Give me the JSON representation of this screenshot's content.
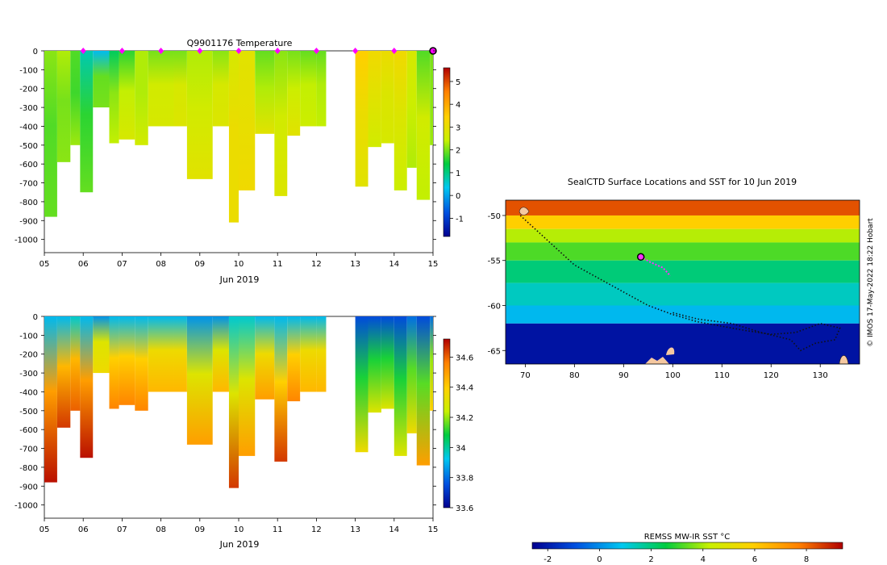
{
  "chart_data": [
    {
      "type": "heatmap",
      "title": "Q9901176  Temperature",
      "xlabel": "Jun 2019",
      "xticks": [
        "05",
        "06",
        "07",
        "08",
        "09",
        "10",
        "11",
        "12",
        "13",
        "14",
        "15"
      ],
      "xlim": [
        5,
        15
      ],
      "yticks": [
        0,
        -100,
        -200,
        -300,
        -400,
        -500,
        -600,
        -700,
        -800,
        -900,
        -1000
      ],
      "ylim": [
        -1070,
        0
      ],
      "colorbar": {
        "range": [
          -1.8,
          5.6
        ],
        "ticks": [
          5,
          4,
          3,
          2,
          1,
          0,
          -1
        ]
      },
      "colormap": [
        "#00008f",
        "#0050e0",
        "#00c8f0",
        "#00cc40",
        "#c8f000",
        "#ffd000",
        "#ff8000",
        "#b00000"
      ],
      "profile_markers": [
        6,
        7,
        8,
        9,
        10,
        11,
        12,
        13,
        14
      ],
      "profile_marker_color": "#ff00ff",
      "current_profile": 15,
      "profiles": [
        [
          5.0,
          5.33,
          -880,
          2.1,
          1.8,
          1.9
        ],
        [
          5.33,
          5.67,
          -590,
          2.3,
          2.0,
          2.1
        ],
        [
          5.67,
          5.92,
          -500,
          1.8,
          1.7,
          2.2
        ],
        [
          5.92,
          6.25,
          -750,
          0.7,
          1.6,
          1.9
        ],
        [
          6.25,
          6.67,
          -300,
          0.2,
          1.9,
          2.0
        ],
        [
          6.67,
          6.92,
          -490,
          1.2,
          2.1,
          2.4
        ],
        [
          6.92,
          7.33,
          -470,
          1.6,
          2.4,
          2.7
        ],
        [
          7.33,
          7.67,
          -500,
          2.3,
          2.3,
          2.6
        ],
        [
          7.67,
          8.33,
          -400,
          2.0,
          2.6,
          2.7
        ],
        [
          8.33,
          8.67,
          -400,
          2.0,
          2.7,
          2.8
        ],
        [
          8.67,
          9.33,
          -680,
          2.3,
          2.6,
          2.9
        ],
        [
          9.33,
          9.75,
          -400,
          2.1,
          2.7,
          2.8
        ],
        [
          9.75,
          10.0,
          -910,
          2.7,
          3.1,
          3.1
        ],
        [
          10.0,
          10.42,
          -740,
          2.9,
          3.0,
          3.2
        ],
        [
          10.42,
          10.92,
          -440,
          1.9,
          2.3,
          2.9
        ],
        [
          10.92,
          11.25,
          -770,
          2.1,
          2.6,
          2.8
        ],
        [
          11.25,
          11.58,
          -450,
          2.0,
          2.5,
          2.9
        ],
        [
          11.58,
          12.0,
          -400,
          1.9,
          2.4,
          2.5
        ],
        [
          12.0,
          12.25,
          -400,
          1.9,
          2.3,
          2.4
        ],
        [
          13.0,
          13.33,
          -720,
          3.5,
          3.1,
          2.9
        ],
        [
          13.33,
          13.67,
          -510,
          3.2,
          2.9,
          2.6
        ],
        [
          13.67,
          14.0,
          -490,
          3.1,
          2.8,
          2.7
        ],
        [
          14.0,
          14.33,
          -740,
          3.2,
          2.8,
          2.5
        ],
        [
          14.33,
          14.58,
          -620,
          2.7,
          2.5,
          2.3
        ],
        [
          14.58,
          14.92,
          -790,
          1.8,
          2.6,
          2.4
        ],
        [
          14.92,
          15.0,
          -500,
          2.0,
          2.1,
          2.2
        ]
      ]
    },
    {
      "type": "heatmap",
      "xlabel": "Jun 2019",
      "xticks": [
        "05",
        "06",
        "07",
        "08",
        "09",
        "10",
        "11",
        "12",
        "13",
        "14",
        "15"
      ],
      "xlim": [
        5,
        15
      ],
      "yticks": [
        0,
        -100,
        -200,
        -300,
        -400,
        -500,
        -600,
        -700,
        -800,
        -900,
        -1000
      ],
      "ylim": [
        -1070,
        0
      ],
      "colorbar": {
        "range": [
          33.6,
          34.72
        ],
        "ticks": [
          "34.6",
          "34.4",
          "34.2",
          "34",
          "33.8",
          "33.6"
        ]
      },
      "colormap": [
        "#00008f",
        "#0050e0",
        "#00c8f0",
        "#00cc40",
        "#c8f000",
        "#ffd000",
        "#ff8000",
        "#b00000"
      ],
      "profiles": [
        [
          5.0,
          5.33,
          -880,
          33.9,
          34.5,
          34.7
        ],
        [
          5.33,
          5.67,
          -590,
          33.9,
          34.45,
          34.65
        ],
        [
          5.67,
          5.92,
          -500,
          33.95,
          34.45,
          34.6
        ],
        [
          5.92,
          6.25,
          -750,
          33.9,
          34.5,
          34.7
        ],
        [
          6.25,
          6.67,
          -300,
          33.85,
          34.3,
          34.35
        ],
        [
          6.67,
          6.92,
          -490,
          33.9,
          34.4,
          34.55
        ],
        [
          6.92,
          7.33,
          -470,
          33.9,
          34.4,
          34.55
        ],
        [
          7.33,
          7.67,
          -500,
          33.9,
          34.4,
          34.55
        ],
        [
          7.67,
          8.33,
          -400,
          33.9,
          34.35,
          34.45
        ],
        [
          8.33,
          8.67,
          -400,
          33.9,
          34.35,
          34.45
        ],
        [
          8.67,
          9.33,
          -680,
          33.85,
          34.3,
          34.5
        ],
        [
          9.33,
          9.75,
          -400,
          33.85,
          34.3,
          34.45
        ],
        [
          9.75,
          10.0,
          -910,
          33.95,
          34.3,
          34.65
        ],
        [
          10.0,
          10.42,
          -740,
          33.95,
          34.3,
          34.5
        ],
        [
          10.42,
          10.92,
          -440,
          33.9,
          34.35,
          34.5
        ],
        [
          10.92,
          11.25,
          -770,
          33.9,
          34.4,
          34.65
        ],
        [
          11.25,
          11.58,
          -450,
          33.9,
          34.4,
          34.55
        ],
        [
          11.58,
          12.0,
          -400,
          33.9,
          34.35,
          34.45
        ],
        [
          12.0,
          12.25,
          -400,
          33.9,
          34.35,
          34.45
        ],
        [
          13.0,
          13.33,
          -720,
          33.75,
          34.1,
          34.35
        ],
        [
          13.33,
          13.67,
          -510,
          33.75,
          34.1,
          34.3
        ],
        [
          13.67,
          14.0,
          -490,
          33.75,
          34.1,
          34.3
        ],
        [
          14.0,
          14.33,
          -740,
          33.75,
          34.1,
          34.3
        ],
        [
          14.33,
          14.58,
          -620,
          33.8,
          34.15,
          34.35
        ],
        [
          14.58,
          14.92,
          -790,
          33.75,
          34.15,
          34.5
        ],
        [
          14.92,
          15.0,
          -500,
          33.8,
          34.2,
          34.4
        ]
      ]
    },
    {
      "type": "heatmap",
      "title": "SealCTD Surface Locations and SST for 10 Jun 2019",
      "xticks": [
        70,
        80,
        90,
        100,
        110,
        120,
        130
      ],
      "xlim": [
        66,
        138
      ],
      "yticks": [
        -50,
        -55,
        -60,
        -65
      ],
      "ylim": [
        -66.5,
        -48.3
      ],
      "colorbar": {
        "label": "REMSS MW-IR SST °C",
        "range": [
          -2.6,
          9.4
        ],
        "ticks": [
          "-2",
          "0",
          "2",
          "4",
          "6",
          "8"
        ]
      },
      "colormap": [
        "#00008f",
        "#0050e0",
        "#00c8f0",
        "#00cc40",
        "#c8f000",
        "#ffd000",
        "#ff8000",
        "#b00000"
      ],
      "sst_bands": [
        [
          -48.3,
          -50.0,
          8.3
        ],
        [
          -50.0,
          -51.5,
          6.0
        ],
        [
          -51.5,
          -53.0,
          4.1
        ],
        [
          -53.0,
          -55.0,
          3.2
        ],
        [
          -55.0,
          -57.5,
          2.0
        ],
        [
          -57.5,
          -60.0,
          1.3
        ],
        [
          -60.0,
          -62.0,
          0.6
        ],
        [
          -62.0,
          -66.5,
          -2.2
        ]
      ],
      "track": [
        [
          69.0,
          -50.0
        ],
        [
          72.0,
          -51.5
        ],
        [
          76.0,
          -53.5
        ],
        [
          80.0,
          -55.5
        ],
        [
          85.0,
          -57.0
        ],
        [
          90.0,
          -58.5
        ],
        [
          95.0,
          -60.0
        ],
        [
          100.0,
          -61.0
        ],
        [
          105.0,
          -61.8
        ],
        [
          110.0,
          -62.3
        ],
        [
          115.0,
          -62.8
        ],
        [
          120.0,
          -63.2
        ],
        [
          125.0,
          -63.0
        ],
        [
          130.0,
          -62.0
        ],
        [
          134.0,
          -62.5
        ],
        [
          133.0,
          -63.8
        ],
        [
          129.0,
          -64.2
        ],
        [
          126.0,
          -65.0
        ],
        [
          124.0,
          -63.8
        ],
        [
          118.0,
          -63.0
        ],
        [
          112.0,
          -62.0
        ],
        [
          105.0,
          -61.5
        ],
        [
          100.0,
          -60.8
        ]
      ],
      "track_color": "#111111",
      "recent_track": [
        [
          93.5,
          -54.6
        ],
        [
          95.5,
          -55.2
        ],
        [
          98.0,
          -55.8
        ],
        [
          99.5,
          -56.7
        ]
      ],
      "recent_track_color": "#ff33ff",
      "current_location": [
        93.5,
        -54.6
      ],
      "land_color": "#f5c8a0",
      "credit": "© IMOS 17-May-2022 18:22 Hobart"
    }
  ]
}
